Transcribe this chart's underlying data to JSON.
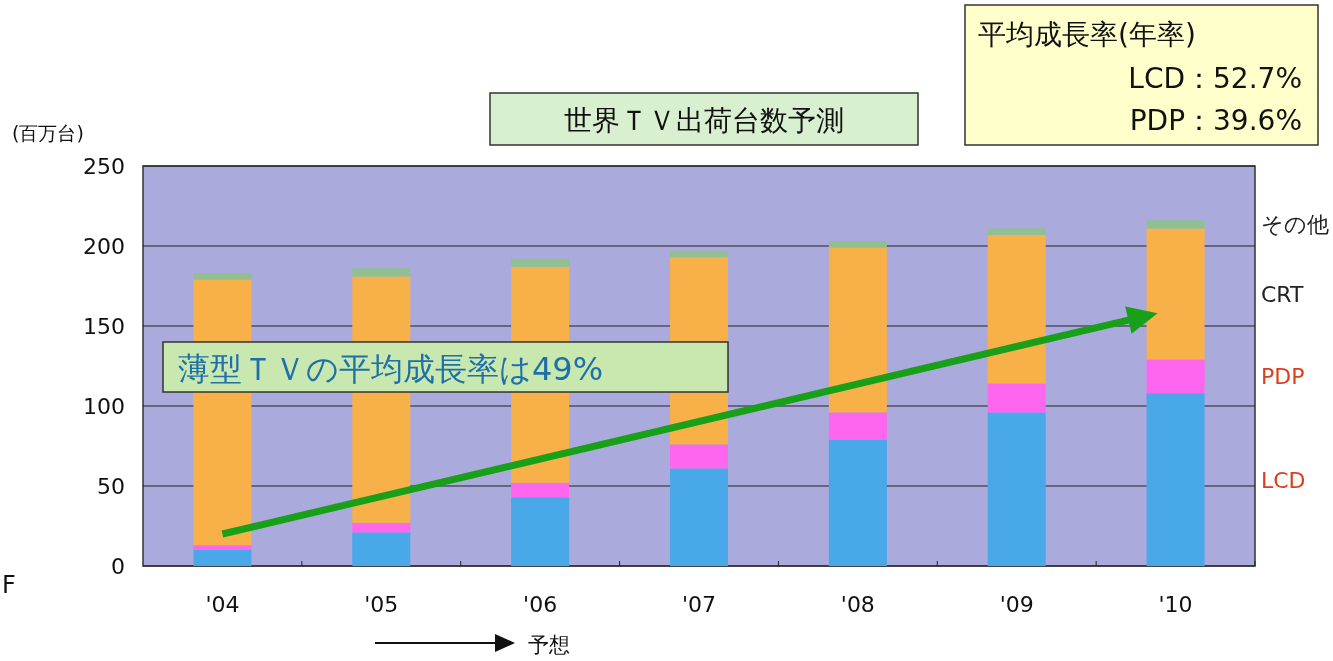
{
  "chart_data": {
    "type": "bar",
    "title": "世界ＴＶ出荷台数予測",
    "ylabel": "(百万台)",
    "categories": [
      "'04",
      "'05",
      "'06",
      "'07",
      "'08",
      "'09",
      "'10"
    ],
    "stacked": true,
    "series": [
      {
        "name": "LCD",
        "color": "#48a8e8",
        "values": [
          10,
          21,
          43,
          61,
          79,
          96,
          108
        ]
      },
      {
        "name": "PDP",
        "color": "#ff66f0",
        "values": [
          3,
          6,
          9,
          15,
          17,
          18,
          21
        ]
      },
      {
        "name": "CRT",
        "color": "#f8b048",
        "values": [
          166,
          154,
          135,
          117,
          103,
          93,
          82
        ]
      },
      {
        "name": "その他",
        "color": "#90c090",
        "values": [
          4,
          5,
          5,
          4,
          4,
          4,
          5
        ]
      }
    ],
    "ylim": [
      0,
      250
    ],
    "yticks": [
      0,
      50,
      100,
      150,
      200,
      250
    ],
    "grid": "y",
    "legend": false,
    "annotations": [
      "平均成長率(年率)",
      "LCD：52.7%",
      "PDP：39.6%",
      "薄型ＴＶの平均成長率は49%",
      "予想",
      "F"
    ]
  }
}
